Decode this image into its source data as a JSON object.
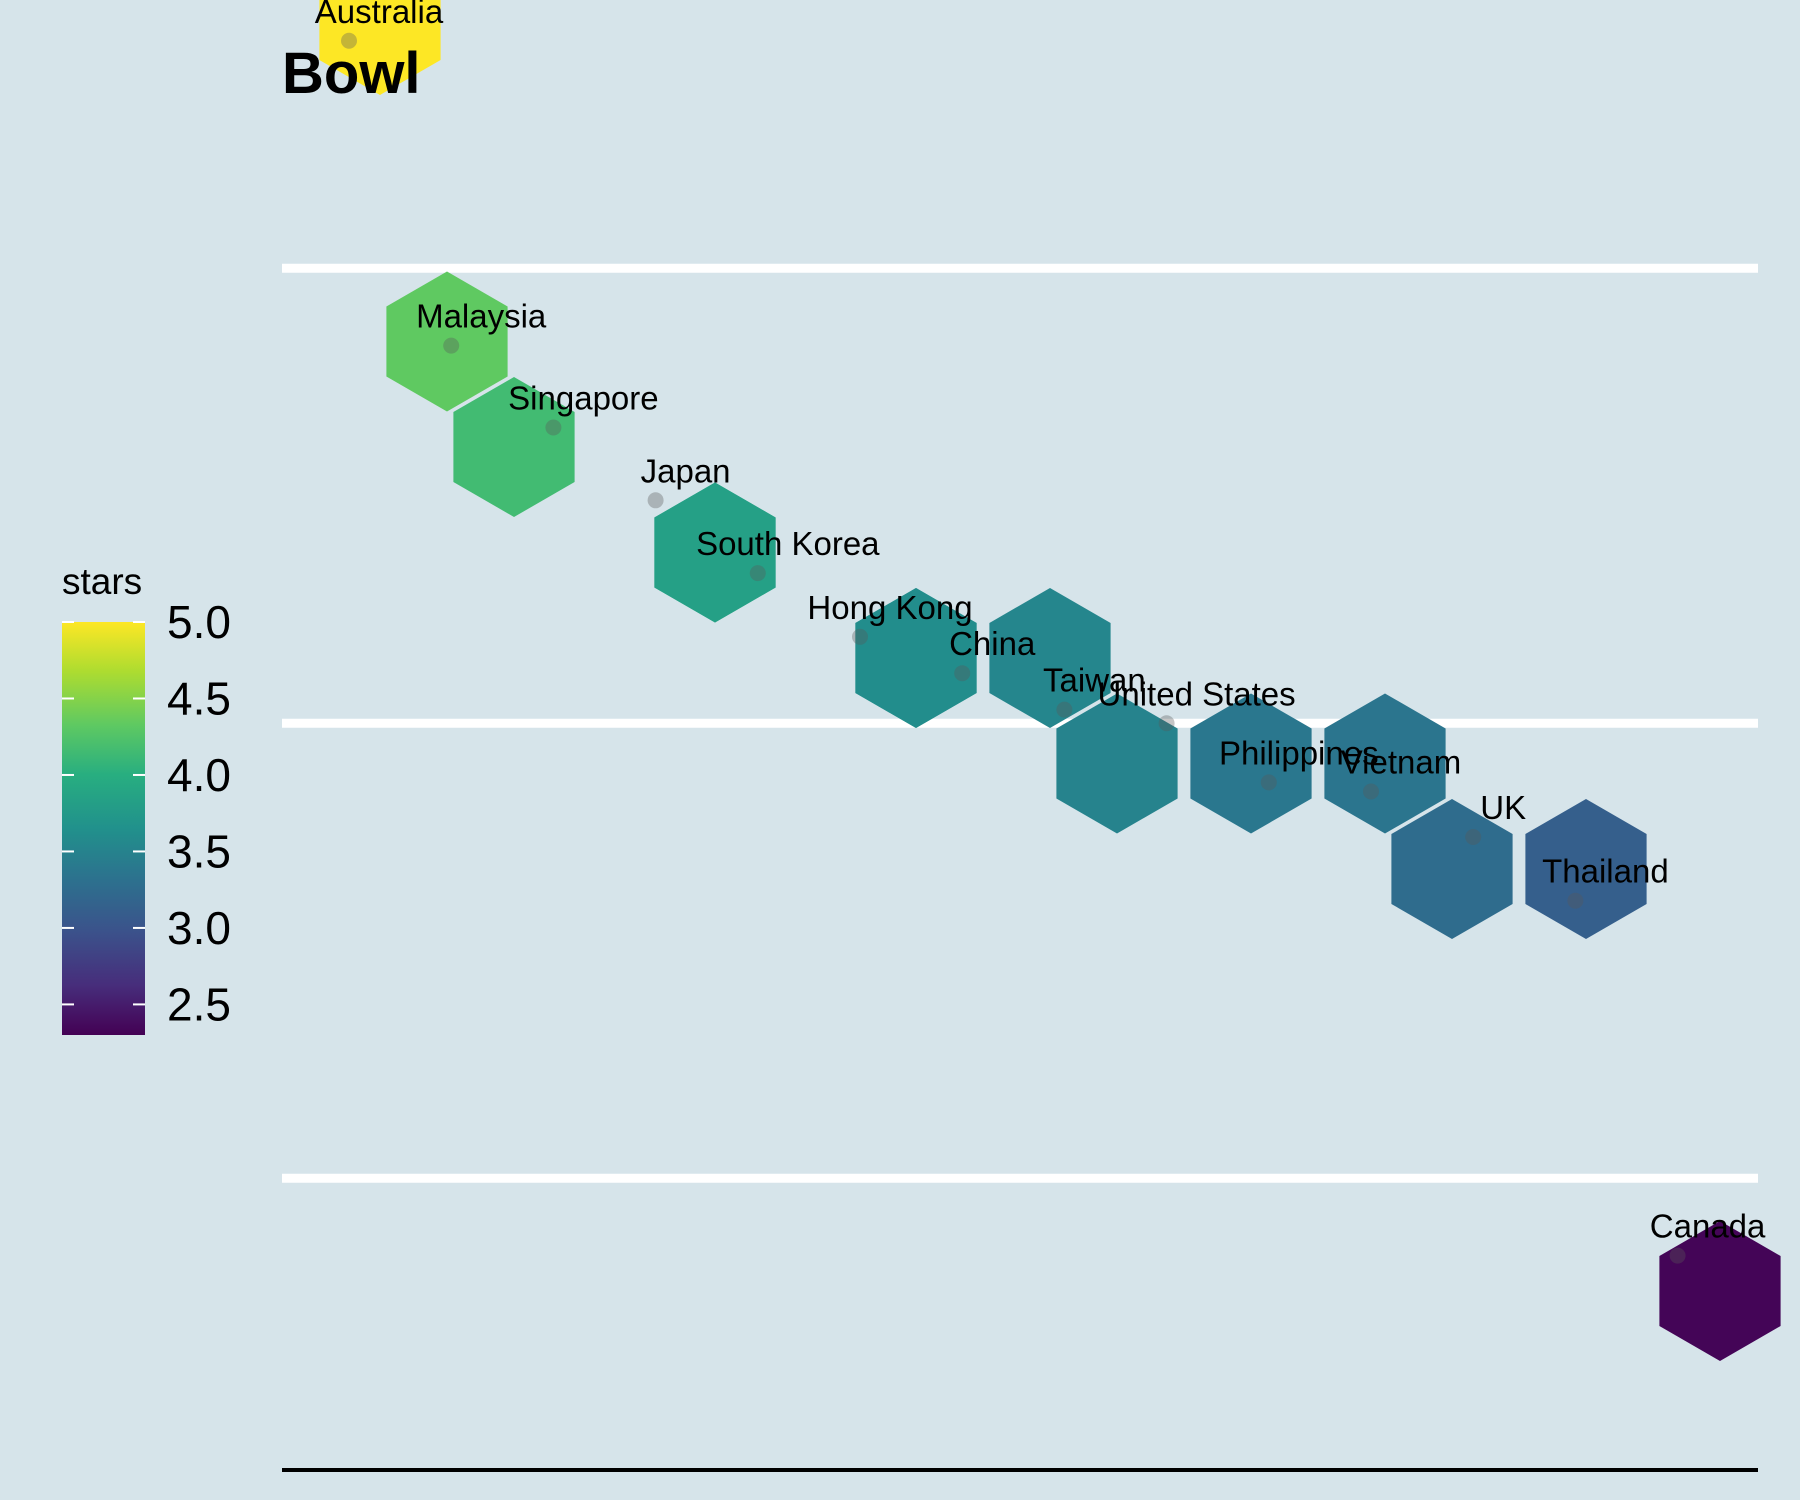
{
  "chart_data": {
    "type": "scatter",
    "title": "Bowl",
    "legend": {
      "title": "stars",
      "position": "left",
      "range": [
        2.3,
        5.0
      ],
      "ticks": [
        "5.0",
        "4.5",
        "4.0",
        "3.5",
        "3.0",
        "2.5"
      ],
      "tick_values": [
        5.0,
        4.5,
        4.0,
        3.5,
        3.0,
        2.5
      ]
    },
    "grid": "horizontal",
    "palette": "viridis",
    "points": [
      {
        "label": "Australia",
        "x": 1,
        "y": 5.0,
        "stars": 5.0
      },
      {
        "label": "Malaysia",
        "x": 2,
        "y": 4.33,
        "stars": 4.33
      },
      {
        "label": "Singapore",
        "x": 3,
        "y": 4.15,
        "stars": 4.15
      },
      {
        "label": "Japan",
        "x": 4,
        "y": 3.99,
        "stars": 3.99
      },
      {
        "label": "South Korea",
        "x": 5,
        "y": 3.83,
        "stars": 3.83
      },
      {
        "label": "Hong Kong",
        "x": 6,
        "y": 3.69,
        "stars": 3.69
      },
      {
        "label": "China",
        "x": 7,
        "y": 3.61,
        "stars": 3.61
      },
      {
        "label": "Taiwan",
        "x": 8,
        "y": 3.53,
        "stars": 3.53
      },
      {
        "label": "United States",
        "x": 9,
        "y": 3.5,
        "stars": 3.5
      },
      {
        "label": "Philippines",
        "x": 10,
        "y": 3.37,
        "stars": 3.37
      },
      {
        "label": "Vietnam",
        "x": 11,
        "y": 3.35,
        "stars": 3.35
      },
      {
        "label": "UK",
        "x": 12,
        "y": 3.25,
        "stars": 3.25
      },
      {
        "label": "Thailand",
        "x": 13,
        "y": 3.11,
        "stars": 3.11
      },
      {
        "label": "Canada",
        "x": 14,
        "y": 2.33,
        "stars": 2.33
      }
    ]
  }
}
